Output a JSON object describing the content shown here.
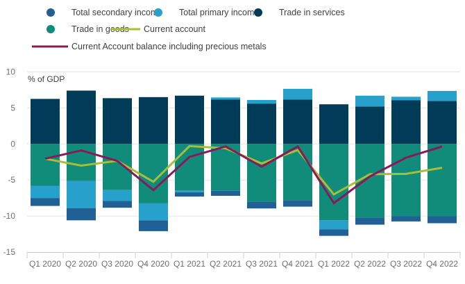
{
  "chart_data": {
    "type": "bar",
    "stacked": true,
    "ylabel": "% of GDP",
    "xlabel": "",
    "ylim": [
      -15,
      10
    ],
    "yticks": [
      10,
      5,
      0,
      -5,
      -10,
      -15
    ],
    "grid": true,
    "legend_position": "top",
    "categories": [
      "Q1 2020",
      "Q2 2020",
      "Q3 2020",
      "Q4 2020",
      "Q1 2021",
      "Q2 2021",
      "Q3 2021",
      "Q4 2021",
      "Q1 2022",
      "Q2 2022",
      "Q3 2022",
      "Q4 2022"
    ],
    "series": [
      {
        "name": "Total secondary income",
        "kind": "bar",
        "color": "#206095",
        "values": [
          -1.1,
          -1.7,
          -0.95,
          -1.5,
          -0.6,
          -0.7,
          -0.95,
          -0.9,
          -0.9,
          -1.0,
          -0.75,
          -1.0
        ]
      },
      {
        "name": "Total primary income",
        "kind": "bar",
        "color": "#27a0cc",
        "values": [
          -1.7,
          -3.75,
          -1.5,
          -2.35,
          -0.2,
          0.3,
          0.5,
          1.5,
          -1.25,
          1.5,
          0.5,
          1.4
        ]
      },
      {
        "name": "Trade in services",
        "kind": "bar",
        "color": "#003c57",
        "values": [
          6.25,
          7.4,
          6.35,
          6.5,
          6.7,
          6.15,
          5.6,
          6.15,
          5.5,
          5.2,
          6.05,
          5.95
        ]
      },
      {
        "name": "Trade in goods",
        "kind": "bar",
        "color": "#118c7b",
        "values": [
          -5.8,
          -5.15,
          -6.4,
          -8.25,
          -6.5,
          -6.5,
          -8.0,
          -7.8,
          -10.6,
          -10.2,
          -10.0,
          -10.0
        ]
      },
      {
        "name": "Current account",
        "kind": "line",
        "color": "#a8bd3a",
        "values": [
          -2.05,
          -3.0,
          -2.35,
          -5.25,
          -0.3,
          -0.6,
          -2.7,
          -0.85,
          -7.0,
          -4.2,
          -4.15,
          -3.3
        ]
      },
      {
        "name": "Current Account balance including precious metals",
        "kind": "line",
        "color": "#871a5b",
        "values": [
          -2.05,
          -0.9,
          -2.35,
          -6.4,
          -1.8,
          -0.35,
          -3.15,
          -0.35,
          -8.2,
          -4.5,
          -1.9,
          -0.35
        ]
      }
    ],
    "legend_rows": [
      [
        0,
        1,
        2
      ],
      [
        3,
        4
      ],
      [
        5
      ]
    ]
  }
}
